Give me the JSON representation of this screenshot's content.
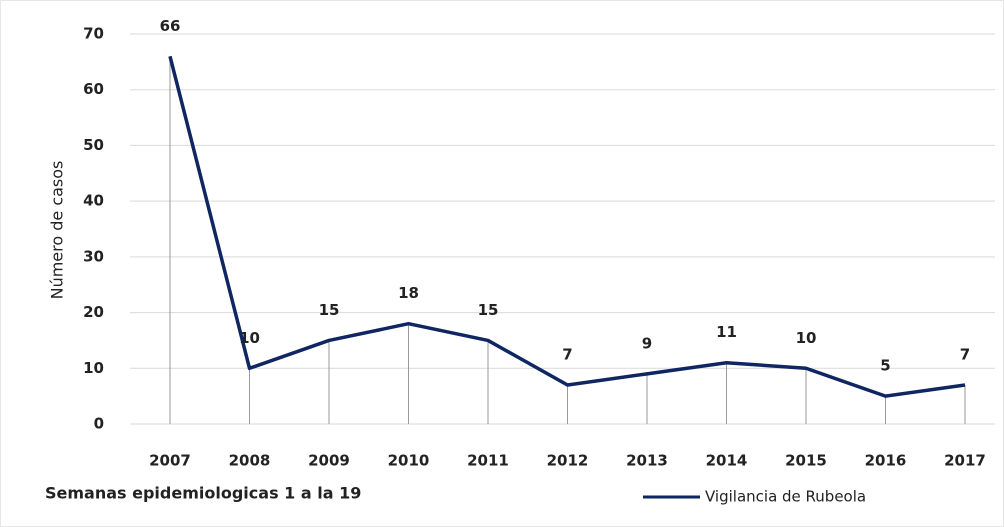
{
  "chart_data": {
    "type": "line",
    "categories": [
      "2007",
      "2008",
      "2009",
      "2010",
      "2011",
      "2012",
      "2013",
      "2014",
      "2015",
      "2016",
      "2017"
    ],
    "series": [
      {
        "name": "Vigilancia de Rubeola",
        "color": "#0f2663",
        "values": [
          66,
          10,
          15,
          18,
          15,
          7,
          9,
          11,
          10,
          5,
          7
        ]
      }
    ],
    "ylim": [
      0,
      70
    ],
    "yticks": [
      0,
      10,
      20,
      30,
      40,
      50,
      60,
      70
    ],
    "grid": true,
    "y_label": "Número de casos",
    "x_label": "Semanas epidemiologicas 1 a la 19",
    "drop_lines": true
  }
}
